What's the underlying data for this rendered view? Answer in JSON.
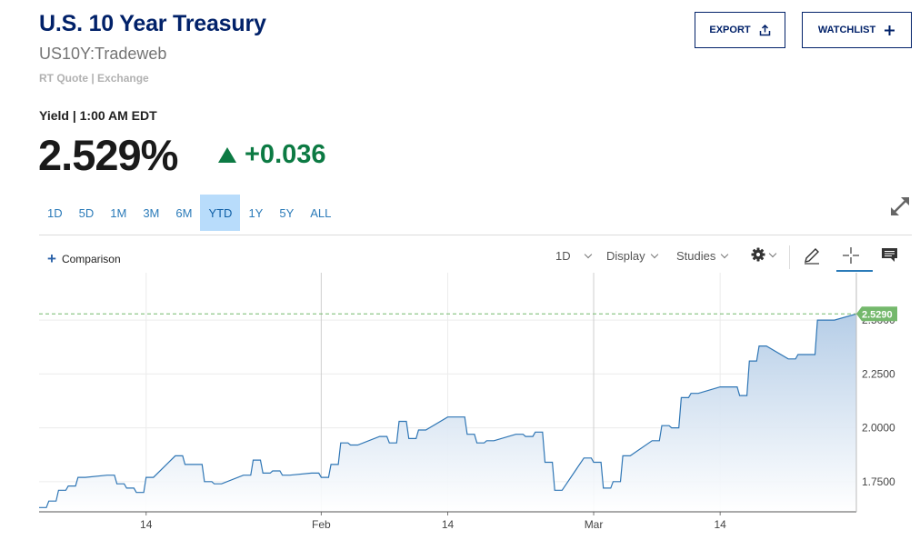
{
  "header": {
    "title": "U.S. 10 Year Treasury",
    "symbol": "US10Y:Tradeweb",
    "quote_meta": "RT Quote | Exchange",
    "export_label": "EXPORT",
    "watchlist_label": "WATCHLIST"
  },
  "quote": {
    "label": "Yield | 1:00 AM EDT",
    "price": "2.529%",
    "change": "+0.036",
    "change_color": "#0c7a43"
  },
  "ranges": [
    {
      "label": "1D",
      "active": false
    },
    {
      "label": "5D",
      "active": false
    },
    {
      "label": "1M",
      "active": false
    },
    {
      "label": "3M",
      "active": false
    },
    {
      "label": "6M",
      "active": false
    },
    {
      "label": "YTD",
      "active": true
    },
    {
      "label": "1Y",
      "active": false
    },
    {
      "label": "5Y",
      "active": false
    },
    {
      "label": "ALL",
      "active": false
    }
  ],
  "toolbar": {
    "comparison_label": "Comparison",
    "interval_label": "1D",
    "display_label": "Display",
    "studies_label": "Studies"
  },
  "icons": {
    "export": "share-upload-icon",
    "watchlist": "plus-icon",
    "expand": "expand-arrows-icon",
    "settings": "gear-icon",
    "draw": "pencil-icon",
    "crosshair": "crosshair-icon",
    "comment": "comment-icon"
  },
  "chart_data": {
    "type": "area",
    "title": "",
    "xlabel": "",
    "ylabel": "",
    "x_tick_labels": [
      "14",
      "Feb",
      "14",
      "Mar",
      "14"
    ],
    "x_tick_dates": [
      "2022-01-14",
      "2022-02-01",
      "2022-02-14",
      "2022-03-01",
      "2022-03-14"
    ],
    "y_ticks": [
      1.75,
      2.0,
      2.25,
      2.5
    ],
    "y_tick_labels": [
      "1.7500",
      "2.0000",
      "2.2500",
      "2.5000"
    ],
    "ylim": [
      1.61,
      2.72
    ],
    "xlim": [
      "2022-01-03",
      "2022-03-28"
    ],
    "last_value": 2.529,
    "last_value_label": "2.5290",
    "line_color": "#2f76b5",
    "fill_color": "#c6d8ec",
    "last_value_color": "#74b86c",
    "grid": true,
    "series": [
      {
        "x": [
          "2022-01-03",
          "2022-01-04",
          "2022-01-05",
          "2022-01-06",
          "2022-01-07",
          "2022-01-10",
          "2022-01-11",
          "2022-01-12",
          "2022-01-13",
          "2022-01-14",
          "2022-01-17",
          "2022-01-18",
          "2022-01-19",
          "2022-01-20",
          "2022-01-21",
          "2022-01-24",
          "2022-01-25",
          "2022-01-26",
          "2022-01-27",
          "2022-01-28",
          "2022-01-31",
          "2022-02-01",
          "2022-02-02",
          "2022-02-03",
          "2022-02-04",
          "2022-02-07",
          "2022-02-08",
          "2022-02-09",
          "2022-02-10",
          "2022-02-11",
          "2022-02-14",
          "2022-02-15",
          "2022-02-16",
          "2022-02-17",
          "2022-02-18",
          "2022-02-21",
          "2022-02-22",
          "2022-02-23",
          "2022-02-24",
          "2022-02-25",
          "2022-02-28",
          "2022-03-01",
          "2022-03-02",
          "2022-03-03",
          "2022-03-04",
          "2022-03-07",
          "2022-03-08",
          "2022-03-09",
          "2022-03-10",
          "2022-03-11",
          "2022-03-14",
          "2022-03-15",
          "2022-03-16",
          "2022-03-17",
          "2022-03-18",
          "2022-03-21",
          "2022-03-22",
          "2022-03-23",
          "2022-03-24",
          "2022-03-25",
          "2022-03-28"
        ],
        "y": [
          1.63,
          1.66,
          1.71,
          1.73,
          1.77,
          1.78,
          1.74,
          1.72,
          1.7,
          1.77,
          1.87,
          1.83,
          1.83,
          1.75,
          1.74,
          1.78,
          1.85,
          1.79,
          1.8,
          1.78,
          1.79,
          1.77,
          1.83,
          1.93,
          1.92,
          1.96,
          1.93,
          2.03,
          1.95,
          1.99,
          2.05,
          2.05,
          1.97,
          1.93,
          1.94,
          1.97,
          1.96,
          1.98,
          1.84,
          1.71,
          1.86,
          1.84,
          1.72,
          1.75,
          1.87,
          1.94,
          2.01,
          2.0,
          2.14,
          2.16,
          2.19,
          2.19,
          2.15,
          2.31,
          2.38,
          2.32,
          2.34,
          2.34,
          2.5,
          2.5,
          2.529
        ]
      }
    ]
  }
}
